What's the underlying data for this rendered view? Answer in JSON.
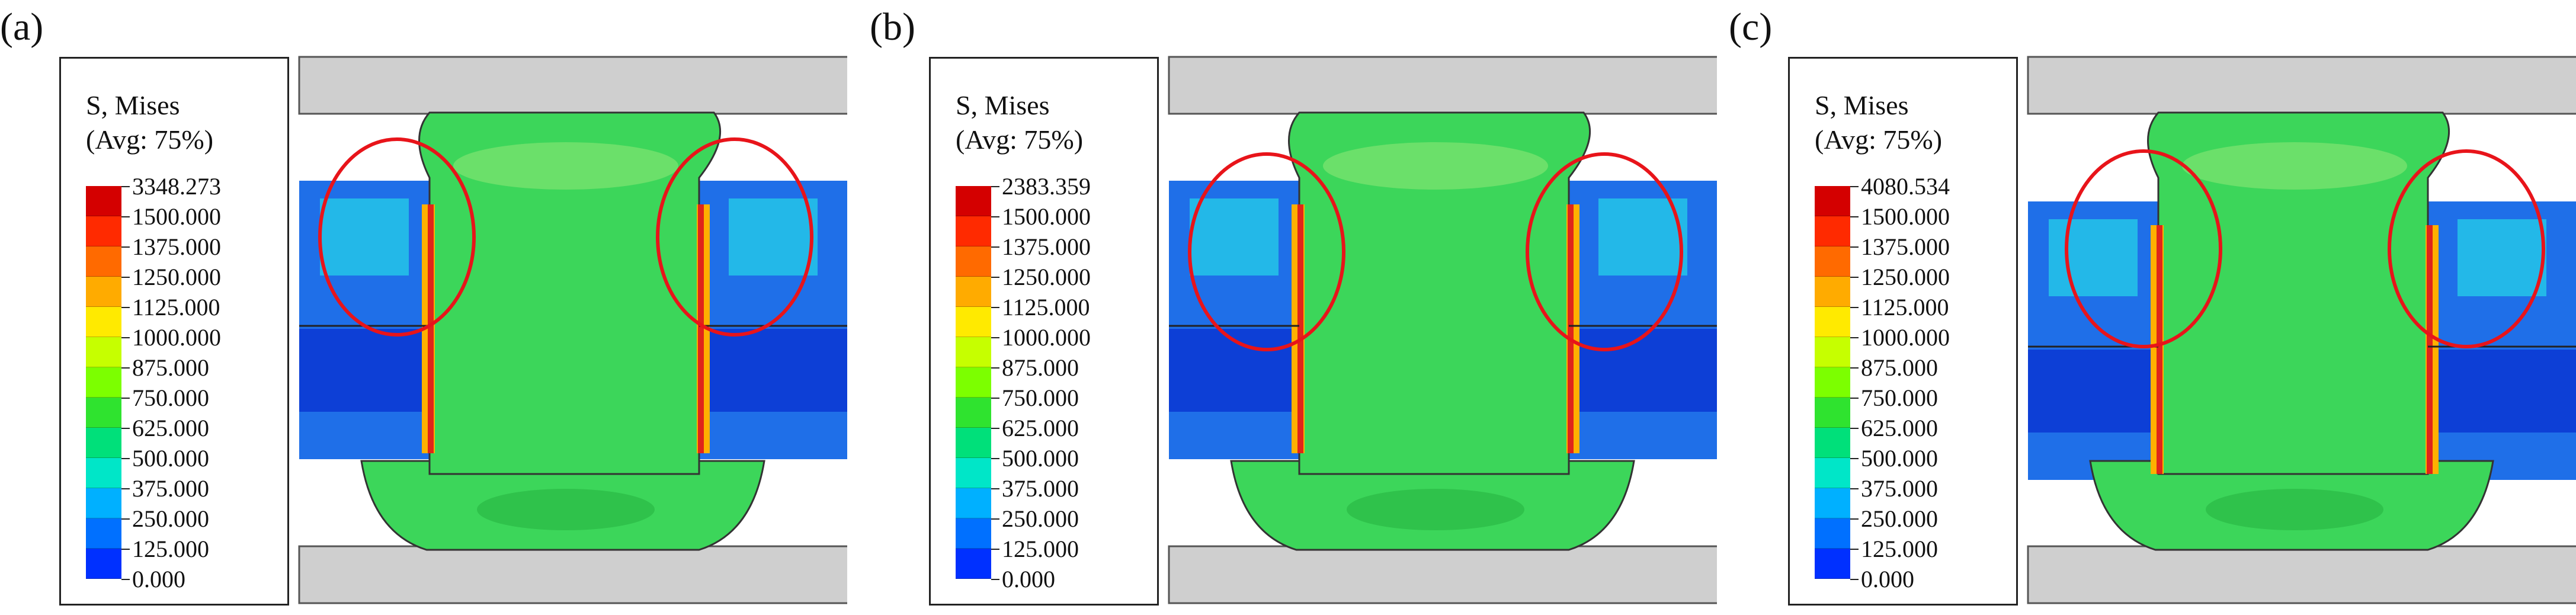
{
  "panels": [
    {
      "label": "(a)",
      "legend_title": [
        "S, Mises",
        "(Avg: 75%)"
      ],
      "legend_values": [
        "3348.273",
        "1500.000",
        "1375.000",
        "1250.000",
        "1125.000",
        "1000.000",
        "875.000",
        "750.000",
        "625.000",
        "500.000",
        "375.000",
        "250.000",
        "125.000",
        "0.000"
      ]
    },
    {
      "label": "(b)",
      "legend_title": [
        "S, Mises",
        "(Avg: 75%)"
      ],
      "legend_values": [
        "2383.359",
        "1500.000",
        "1375.000",
        "1250.000",
        "1125.000",
        "1000.000",
        "875.000",
        "750.000",
        "625.000",
        "500.000",
        "375.000",
        "250.000",
        "125.000",
        "0.000"
      ]
    },
    {
      "label": "(c)",
      "legend_title": [
        "S, Mises",
        "(Avg: 75%)"
      ],
      "legend_values": [
        "4080.534",
        "1500.000",
        "1375.000",
        "1250.000",
        "1125.000",
        "1000.000",
        "875.000",
        "750.000",
        "625.000",
        "500.000",
        "375.000",
        "250.000",
        "125.000",
        "0.000"
      ]
    }
  ],
  "legend_colors": [
    "#d40000",
    "#ff2a00",
    "#ff6a00",
    "#ffab00",
    "#ffea00",
    "#c6ff00",
    "#7cff00",
    "#2fe32f",
    "#00e07a",
    "#00e6c8",
    "#00b0ff",
    "#0070ff",
    "#0030ff",
    "#0000dd"
  ],
  "fe_colors": {
    "rivet": "#3cd65a",
    "rivet_light": "#6be06a",
    "rivet_dark": "#2fc24b",
    "sheet_blue": "#1f6fe8",
    "sheet_deep": "#0d3fd6",
    "sheet_cyan": "#23b8e8",
    "hot": "#e0251a",
    "warm": "#ffb000",
    "plate": "#cfcfcf",
    "highlight_ellipse": "#e8141a"
  }
}
